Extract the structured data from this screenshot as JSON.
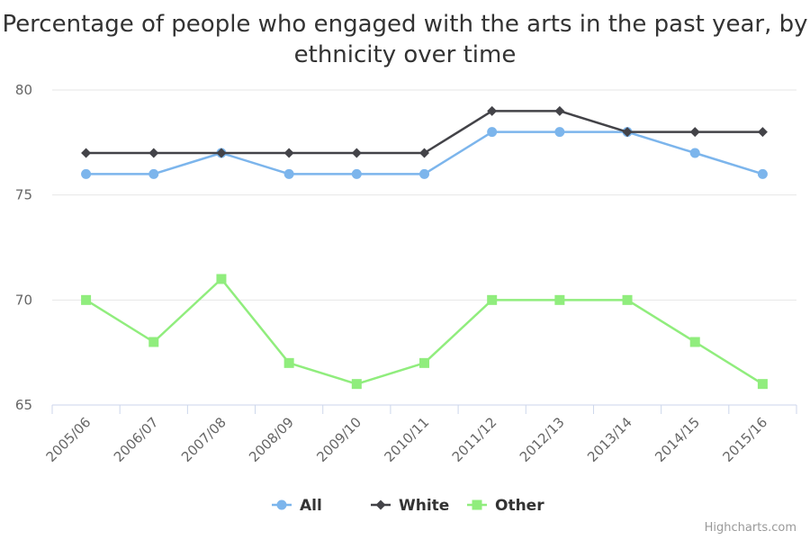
{
  "chart_data": {
    "type": "line",
    "title": "Percentage of people who engaged with the arts in the past year, by ethnicity over time",
    "categories": [
      "2005/06",
      "2006/07",
      "2007/08",
      "2008/09",
      "2009/10",
      "2010/11",
      "2011/12",
      "2012/13",
      "2013/14",
      "2014/15",
      "2015/16"
    ],
    "ylim": [
      65,
      80
    ],
    "yticks": [
      65,
      70,
      75,
      80
    ],
    "grid": true,
    "legend": "bottom-center",
    "series": [
      {
        "name": "All",
        "color": "#7cb5ec",
        "marker": "circle",
        "values": [
          76,
          76,
          77,
          76,
          76,
          76,
          78,
          78,
          78,
          77,
          76
        ]
      },
      {
        "name": "White",
        "color": "#434348",
        "marker": "diamond",
        "values": [
          77,
          77,
          77,
          77,
          77,
          77,
          79,
          79,
          78,
          78,
          78
        ]
      },
      {
        "name": "Other",
        "color": "#90ed7d",
        "marker": "square",
        "values": [
          70,
          68,
          71,
          67,
          66,
          67,
          70,
          70,
          70,
          68,
          66
        ]
      }
    ]
  },
  "credits": "Highcharts.com"
}
